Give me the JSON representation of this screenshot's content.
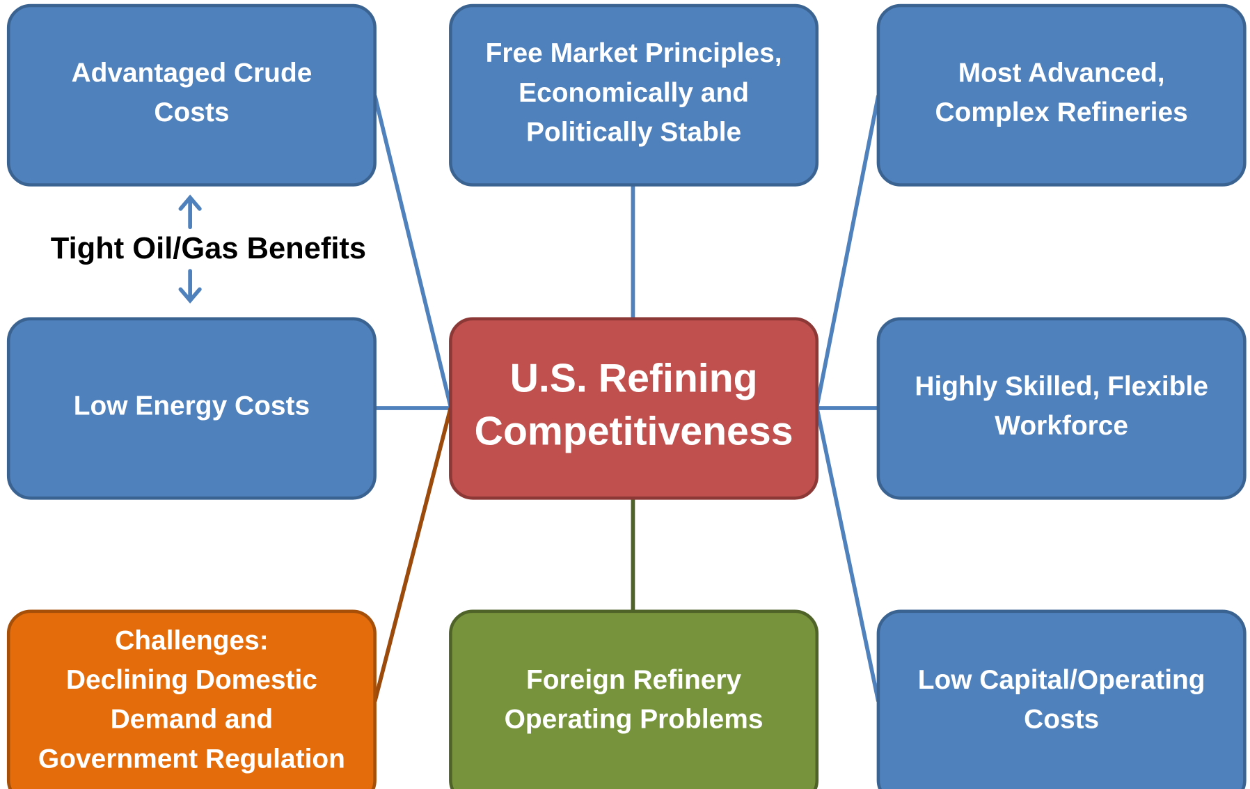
{
  "nodes": [
    {
      "lines": [
        "Advantaged Crude",
        "Costs"
      ]
    },
    {
      "lines": [
        "Free Market Principles,",
        "Economically and",
        "Politically Stable"
      ]
    },
    {
      "lines": [
        "Most Advanced,",
        "Complex Refineries"
      ]
    },
    {
      "lines": [
        "Low Energy Costs"
      ]
    },
    {
      "lines": [
        "U.S. Refining",
        "Competitiveness"
      ]
    },
    {
      "lines": [
        "Highly Skilled, Flexible",
        "Workforce"
      ]
    },
    {
      "lines": [
        "Challenges:",
        "Declining Domestic",
        "Demand and",
        "Government Regulation"
      ]
    },
    {
      "lines": [
        "Foreign Refinery",
        "Operating Problems"
      ]
    },
    {
      "lines": [
        "Low Capital/Operating",
        "Costs"
      ]
    }
  ],
  "annotation": "Tight Oil/Gas Benefits"
}
